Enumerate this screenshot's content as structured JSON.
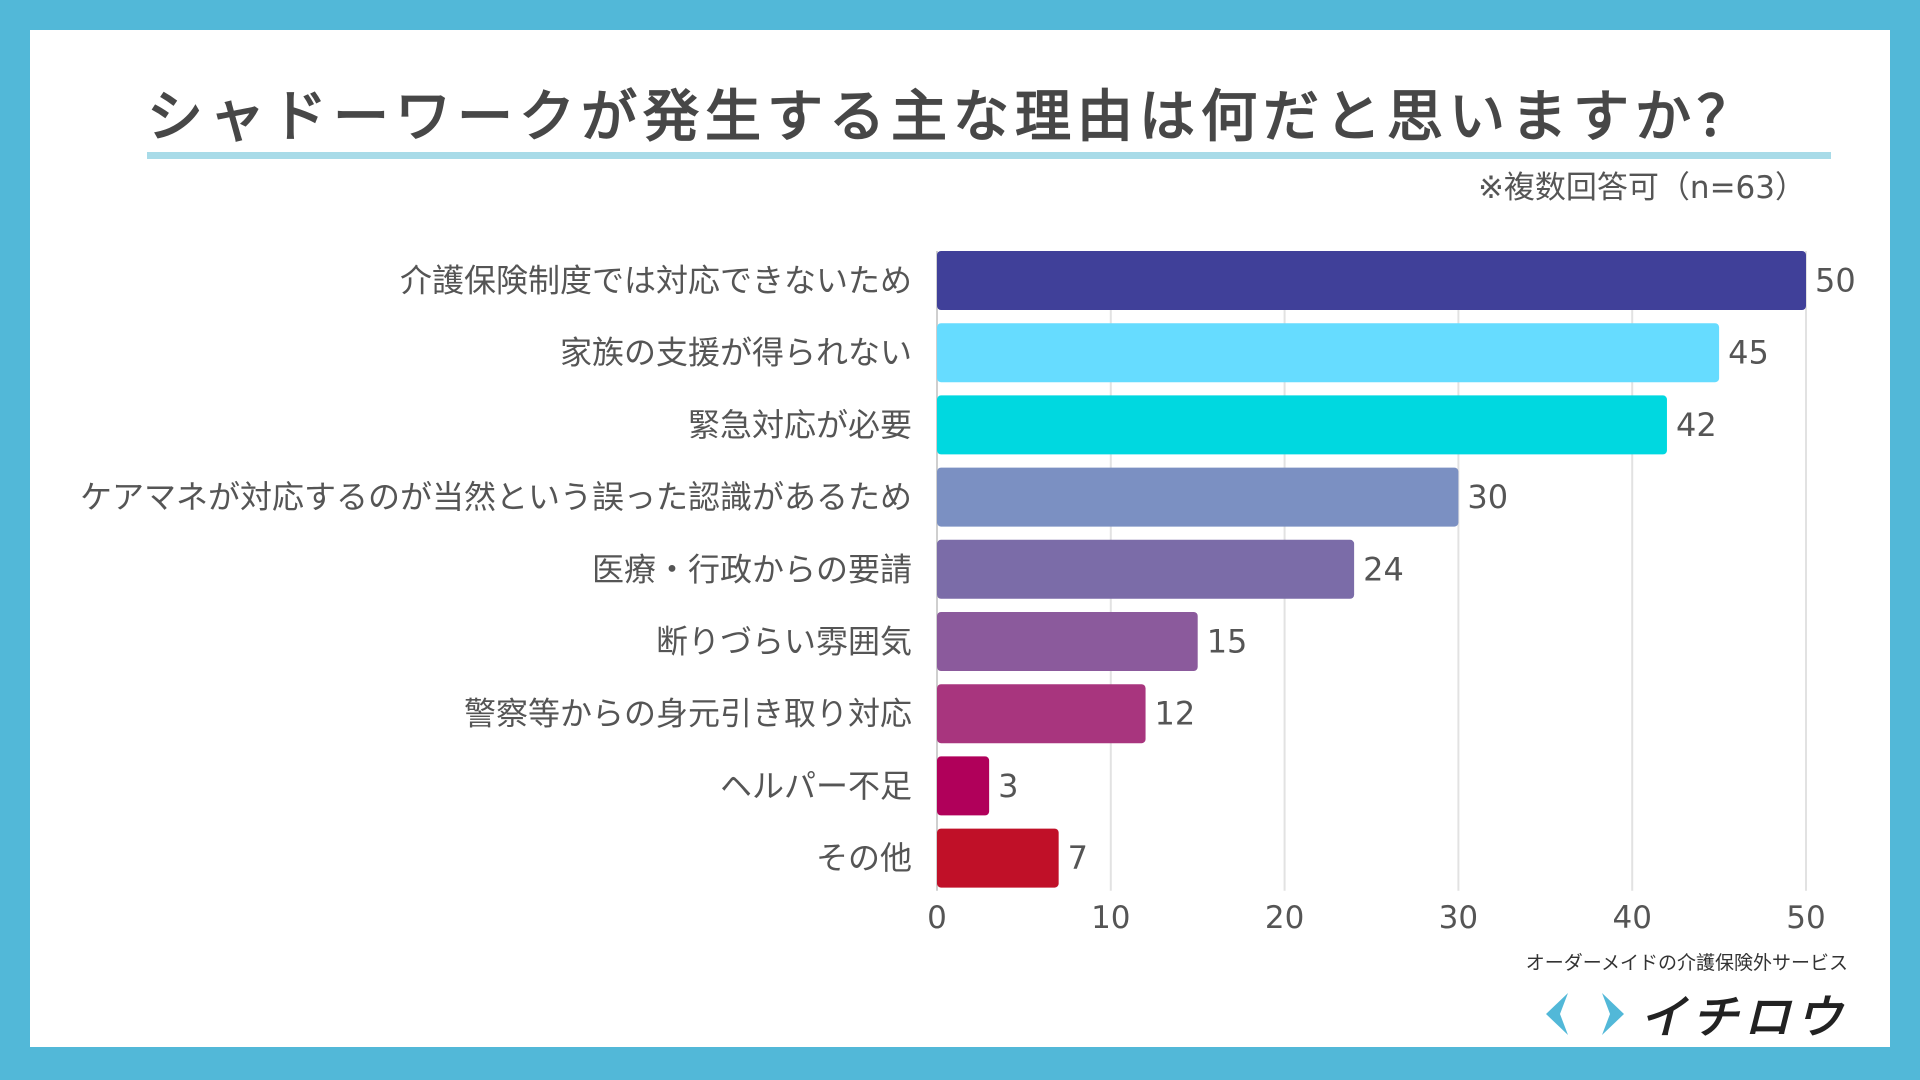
{
  "title": "シャドーワークが発生する主な理由は何だと思いますか？",
  "subtitle": "※複数回答可（n=63）",
  "logo": {
    "tagline": "オーダーメイドの介護保険外サービス",
    "name": "イチロウ"
  },
  "colors": {
    "border": "#52b8d8",
    "underline": "#a8dbe8"
  },
  "chart_data": {
    "type": "bar",
    "orientation": "horizontal",
    "categories": [
      "介護保険制度では対応できないため",
      "家族の支援が得られない",
      "緊急対応が必要",
      "ケアマネが対応するのが当然という誤った認識があるため",
      "医療・行政からの要請",
      "断りづらい雰囲気",
      "警察等からの身元引き取り対応",
      "ヘルパー不足",
      "その他"
    ],
    "values": [
      50,
      45,
      42,
      30,
      24,
      15,
      12,
      3,
      7
    ],
    "colors": [
      "#404099",
      "#66dcff",
      "#00d8e0",
      "#7b90c2",
      "#7b6ca8",
      "#8b5a9c",
      "#a8357e",
      "#b0005a",
      "#c01028"
    ],
    "xlim": [
      0,
      50
    ],
    "xticks": [
      0,
      10,
      20,
      30,
      40,
      50
    ],
    "grid": true,
    "data_labels": true
  }
}
